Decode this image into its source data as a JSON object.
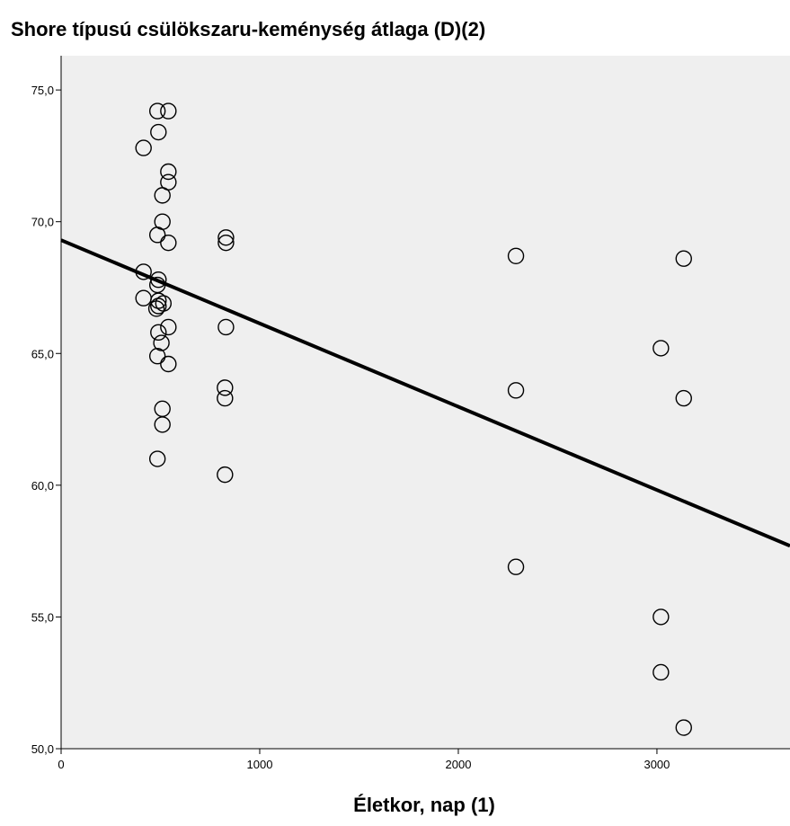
{
  "chart_data": {
    "type": "scatter",
    "title": "Shore típusú csülökszaru-keménység átlaga (D)(2)",
    "xlabel": "Életkor, nap (1)",
    "ylabel": "",
    "xlim": [
      0,
      3670
    ],
    "ylim": [
      50,
      76.3
    ],
    "xticks": [
      0,
      1000,
      2000,
      3000
    ],
    "xtick_labels": [
      "0",
      "1000",
      "2000",
      "3000"
    ],
    "yticks": [
      50,
      55,
      60,
      65,
      70,
      75
    ],
    "ytick_labels": [
      "50,0",
      "55,0",
      "60,0",
      "65,0",
      "70,0",
      "75,0"
    ],
    "grid": false,
    "legend": "none",
    "colors": {
      "plot_background": "#efefef",
      "marker_stroke": "#000000",
      "fit_line": "#000000"
    },
    "fit_line": {
      "type": "linear",
      "x": [
        0,
        3670
      ],
      "y": [
        69.3,
        57.7
      ]
    },
    "points": [
      {
        "x": 485,
        "y": 74.2
      },
      {
        "x": 540,
        "y": 74.2
      },
      {
        "x": 490,
        "y": 73.4
      },
      {
        "x": 415,
        "y": 72.8
      },
      {
        "x": 540,
        "y": 71.9
      },
      {
        "x": 540,
        "y": 71.5
      },
      {
        "x": 510,
        "y": 71.0
      },
      {
        "x": 510,
        "y": 70.0
      },
      {
        "x": 485,
        "y": 69.5
      },
      {
        "x": 540,
        "y": 69.2
      },
      {
        "x": 415,
        "y": 68.1
      },
      {
        "x": 490,
        "y": 67.8
      },
      {
        "x": 485,
        "y": 67.6
      },
      {
        "x": 415,
        "y": 67.1
      },
      {
        "x": 490,
        "y": 67.0
      },
      {
        "x": 515,
        "y": 66.9
      },
      {
        "x": 480,
        "y": 66.7
      },
      {
        "x": 490,
        "y": 66.8
      },
      {
        "x": 540,
        "y": 66.0
      },
      {
        "x": 490,
        "y": 65.8
      },
      {
        "x": 505,
        "y": 65.4
      },
      {
        "x": 485,
        "y": 64.9
      },
      {
        "x": 540,
        "y": 64.6
      },
      {
        "x": 510,
        "y": 62.9
      },
      {
        "x": 510,
        "y": 62.3
      },
      {
        "x": 485,
        "y": 61.0
      },
      {
        "x": 830,
        "y": 69.4
      },
      {
        "x": 830,
        "y": 69.2
      },
      {
        "x": 830,
        "y": 66.0
      },
      {
        "x": 825,
        "y": 63.7
      },
      {
        "x": 825,
        "y": 63.3
      },
      {
        "x": 825,
        "y": 60.4
      },
      {
        "x": 2290,
        "y": 68.7
      },
      {
        "x": 2290,
        "y": 63.6
      },
      {
        "x": 2290,
        "y": 56.9
      },
      {
        "x": 3020,
        "y": 65.2
      },
      {
        "x": 3020,
        "y": 55.0
      },
      {
        "x": 3020,
        "y": 52.9
      },
      {
        "x": 3135,
        "y": 68.6
      },
      {
        "x": 3135,
        "y": 63.3
      },
      {
        "x": 3135,
        "y": 50.8
      }
    ]
  }
}
